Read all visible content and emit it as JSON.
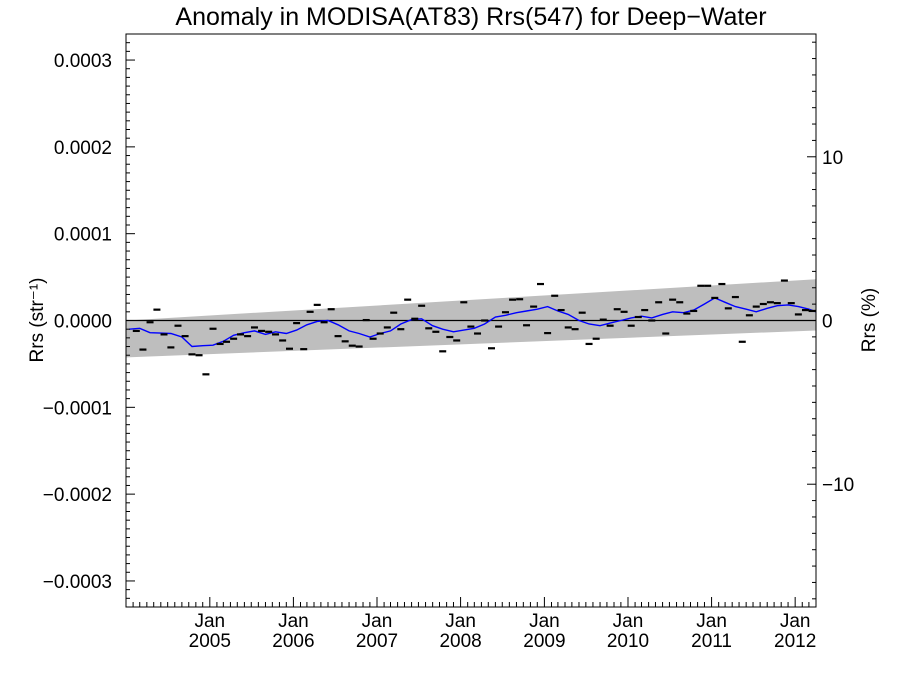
{
  "chart_data": {
    "type": "line",
    "title": "Anomaly in MODISA(AT83) Rrs(547) for Deep−Water",
    "ylabel": "Rrs (str⁻¹)",
    "ylabel_right": "Rrs (%)",
    "ylim": [
      -0.00033,
      0.00033
    ],
    "ylim_right": [
      -17.5,
      17.5
    ],
    "xlim": [
      "2004-01-01",
      "2012-04-01"
    ],
    "yticks": [
      -0.0003,
      -0.0002,
      -0.0001,
      0.0,
      0.0001,
      0.0002,
      0.0003
    ],
    "ytick_labels": [
      "−0.0003",
      "−0.0002",
      "−0.0001",
      "0.0000",
      "0.0001",
      "0.0002",
      "0.0003"
    ],
    "yticks_right": [
      -10,
      0,
      10
    ],
    "ytick_labels_right": [
      "−10",
      "0",
      "10"
    ],
    "xticks": [
      "2005-01-01",
      "2006-01-01",
      "2007-01-01",
      "2008-01-01",
      "2009-01-01",
      "2010-01-01",
      "2011-01-01",
      "2012-01-01"
    ],
    "xtick_labels_top": [
      "Jan",
      "Jan",
      "Jan",
      "Jan",
      "Jan",
      "Jan",
      "Jan",
      "Jan"
    ],
    "xtick_labels_bottom": [
      "2005",
      "2006",
      "2007",
      "2008",
      "2009",
      "2010",
      "2011",
      "2012"
    ],
    "grid": false,
    "colors": {
      "running_mean": "#0000ff",
      "band": "#bebebe",
      "markers": "#000000",
      "zero_line": "#000000"
    },
    "uncertainty_band": {
      "x": [
        "2004-01-01",
        "2012-04-01"
      ],
      "upper": [
        0.0,
        4.75e-05
      ],
      "lower": [
        -4.25e-05,
        -1.15e-05
      ]
    },
    "series": [
      {
        "style": "markers",
        "x": [
          "2004-02",
          "2004-03",
          "2004-04",
          "2004-05",
          "2004-06",
          "2004-07",
          "2004-08",
          "2004-09",
          "2004-10",
          "2004-11",
          "2004-12",
          "2005-01",
          "2005-02",
          "2005-03",
          "2005-04",
          "2005-05",
          "2005-06",
          "2005-07",
          "2005-08",
          "2005-09",
          "2005-10",
          "2005-11",
          "2005-12",
          "2006-01",
          "2006-02",
          "2006-03",
          "2006-04",
          "2006-05",
          "2006-06",
          "2006-07",
          "2006-08",
          "2006-09",
          "2006-10",
          "2006-11",
          "2006-12",
          "2007-01",
          "2007-02",
          "2007-03",
          "2007-04",
          "2007-05",
          "2007-06",
          "2007-07",
          "2007-08",
          "2007-09",
          "2007-10",
          "2007-11",
          "2007-12",
          "2008-01",
          "2008-02",
          "2008-03",
          "2008-04",
          "2008-05",
          "2008-06",
          "2008-07",
          "2008-08",
          "2008-09",
          "2008-10",
          "2008-11",
          "2008-12",
          "2009-01",
          "2009-02",
          "2009-03",
          "2009-04",
          "2009-05",
          "2009-06",
          "2009-07",
          "2009-08",
          "2009-09",
          "2009-10",
          "2009-11",
          "2009-12",
          "2010-01",
          "2010-02",
          "2010-03",
          "2010-04",
          "2010-05",
          "2010-06",
          "2010-07",
          "2010-08",
          "2010-09",
          "2010-10",
          "2010-11",
          "2010-12",
          "2011-01",
          "2011-02",
          "2011-03",
          "2011-04",
          "2011-05",
          "2011-06",
          "2011-07",
          "2011-08",
          "2011-09",
          "2011-10",
          "2011-11",
          "2011-12",
          "2012-01",
          "2012-02",
          "2012-03"
        ],
        "y": [
          -1.2e-05,
          -3.35e-05,
          -2e-06,
          1.25e-05,
          -1.6e-05,
          -3.1e-05,
          -6e-06,
          -1.8e-05,
          -3.9e-05,
          -4e-05,
          -6.2e-05,
          -9.5e-06,
          -2.7e-05,
          -2.45e-05,
          -2.1e-05,
          -1.6e-05,
          -1.8e-05,
          -8e-06,
          -1.2e-05,
          -1.3e-05,
          -1.6e-05,
          -2.3e-05,
          -3.25e-05,
          -3e-06,
          -3.3e-05,
          1e-05,
          1.8e-05,
          -2e-06,
          1.3e-05,
          -1.8e-05,
          -2.4e-05,
          -2.9e-05,
          -3e-05,
          5e-07,
          -2.1e-05,
          -1.5e-05,
          -8e-06,
          9e-06,
          -1e-05,
          2.4e-05,
          2e-06,
          1.7e-05,
          -9e-06,
          -1.3e-05,
          -3.55e-05,
          -1.9e-05,
          -2.3e-05,
          2.1e-05,
          -7e-06,
          -1.5e-05,
          0.0,
          -3.2e-05,
          -7e-06,
          9.5e-06,
          2.4e-05,
          2.45e-05,
          -5.5e-06,
          1.6e-05,
          4.2e-05,
          -1.45e-05,
          2.85e-05,
          1.2e-05,
          -8e-06,
          -1e-05,
          9e-06,
          -2.7e-05,
          -2.1e-05,
          1e-06,
          -6e-06,
          1.3e-05,
          1e-05,
          -6e-06,
          4e-06,
          1.2e-05,
          0.0,
          2.1e-05,
          -1.5e-05,
          2.4e-05,
          2.1e-05,
          8e-06,
          1.1e-05,
          4e-05,
          4e-05,
          2.6e-05,
          4.2e-05,
          1.4e-05,
          2.7e-05,
          -2.45e-05,
          6e-06,
          1.6e-05,
          1.9e-05,
          2.1e-05,
          2e-05,
          4.6e-05,
          2e-05,
          7e-06,
          1.2e-05,
          1.1e-05
        ]
      },
      {
        "style": "line",
        "x": [
          "2004-01-15",
          "2004-03-01",
          "2004-04-15",
          "2004-06-01",
          "2004-07-15",
          "2004-09-01",
          "2004-10-15",
          "2004-12-01",
          "2005-01-15",
          "2005-03-01",
          "2005-04-15",
          "2005-06-01",
          "2005-07-15",
          "2005-09-01",
          "2005-10-15",
          "2005-12-01",
          "2006-01-15",
          "2006-03-01",
          "2006-04-15",
          "2006-06-01",
          "2006-07-15",
          "2006-09-01",
          "2006-10-15",
          "2006-12-01",
          "2007-01-15",
          "2007-03-01",
          "2007-04-15",
          "2007-06-01",
          "2007-07-15",
          "2007-09-01",
          "2007-10-15",
          "2007-12-01",
          "2008-01-15",
          "2008-03-01",
          "2008-04-15",
          "2008-06-01",
          "2008-07-15",
          "2008-09-01",
          "2008-10-15",
          "2008-12-01",
          "2009-01-15",
          "2009-03-01",
          "2009-04-15",
          "2009-06-01",
          "2009-07-15",
          "2009-09-01",
          "2009-10-15",
          "2009-12-01",
          "2010-01-15",
          "2010-03-01",
          "2010-04-15",
          "2010-06-01",
          "2010-07-15",
          "2010-09-01",
          "2010-10-15",
          "2010-12-01",
          "2011-01-15",
          "2011-03-01",
          "2011-04-15",
          "2011-06-01",
          "2011-07-15",
          "2011-09-01",
          "2011-10-15",
          "2011-12-01",
          "2012-01-15",
          "2012-03-01",
          "2012-04-01"
        ],
        "y": [
          -1e-05,
          -9e-06,
          -1.4e-05,
          -1.45e-05,
          -1.5e-05,
          -1.9e-05,
          -3e-05,
          -2.9e-05,
          -2.85e-05,
          -2.4e-05,
          -1.7e-05,
          -1.4e-05,
          -1.2e-05,
          -1.6e-05,
          -1.3e-05,
          -1.5e-05,
          -1.1e-05,
          -5e-06,
          -1e-06,
          0.0,
          -5e-06,
          -1.2e-05,
          -1.5e-05,
          -1.9e-05,
          -1.5e-05,
          -1.2e-05,
          -4e-06,
          1e-06,
          2e-06,
          -6e-06,
          -1e-05,
          -1.3e-05,
          -1.1e-05,
          -9e-06,
          -4e-06,
          4e-06,
          6e-06,
          9e-06,
          1.1e-05,
          1.3e-05,
          1.6e-05,
          1.1e-05,
          7e-06,
          0.0,
          -4e-06,
          -6e-06,
          -3e-06,
          0.0,
          3e-06,
          5e-06,
          3e-06,
          7e-06,
          1e-05,
          9e-06,
          1.2e-05,
          1.9e-05,
          2.6e-05,
          2.1e-05,
          1.6e-05,
          1.3e-05,
          1e-05,
          1.4e-05,
          1.7e-05,
          1.8e-05,
          1.6e-05,
          1.3e-05,
          1e-05
        ]
      }
    ]
  }
}
